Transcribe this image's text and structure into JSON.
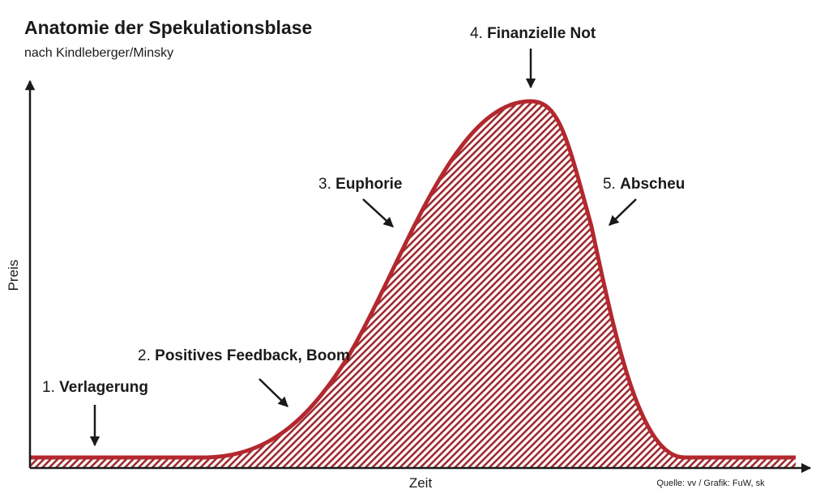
{
  "header": {
    "title": "Anatomie der Spekulationsblase",
    "subtitle": "nach Kindleberger/Minsky"
  },
  "axes": {
    "y_label": "Preis",
    "x_label": "Zeit"
  },
  "stages": [
    {
      "number": "1.",
      "name": "Verlagerung"
    },
    {
      "number": "2.",
      "name": "Positives Feedback, Boom"
    },
    {
      "number": "3.",
      "name": "Euphorie"
    },
    {
      "number": "4.",
      "name": "Finanzielle Not"
    },
    {
      "number": "5.",
      "name": "Abscheu"
    }
  ],
  "source": "Quelle: vv / Grafik: FuW, sk"
}
